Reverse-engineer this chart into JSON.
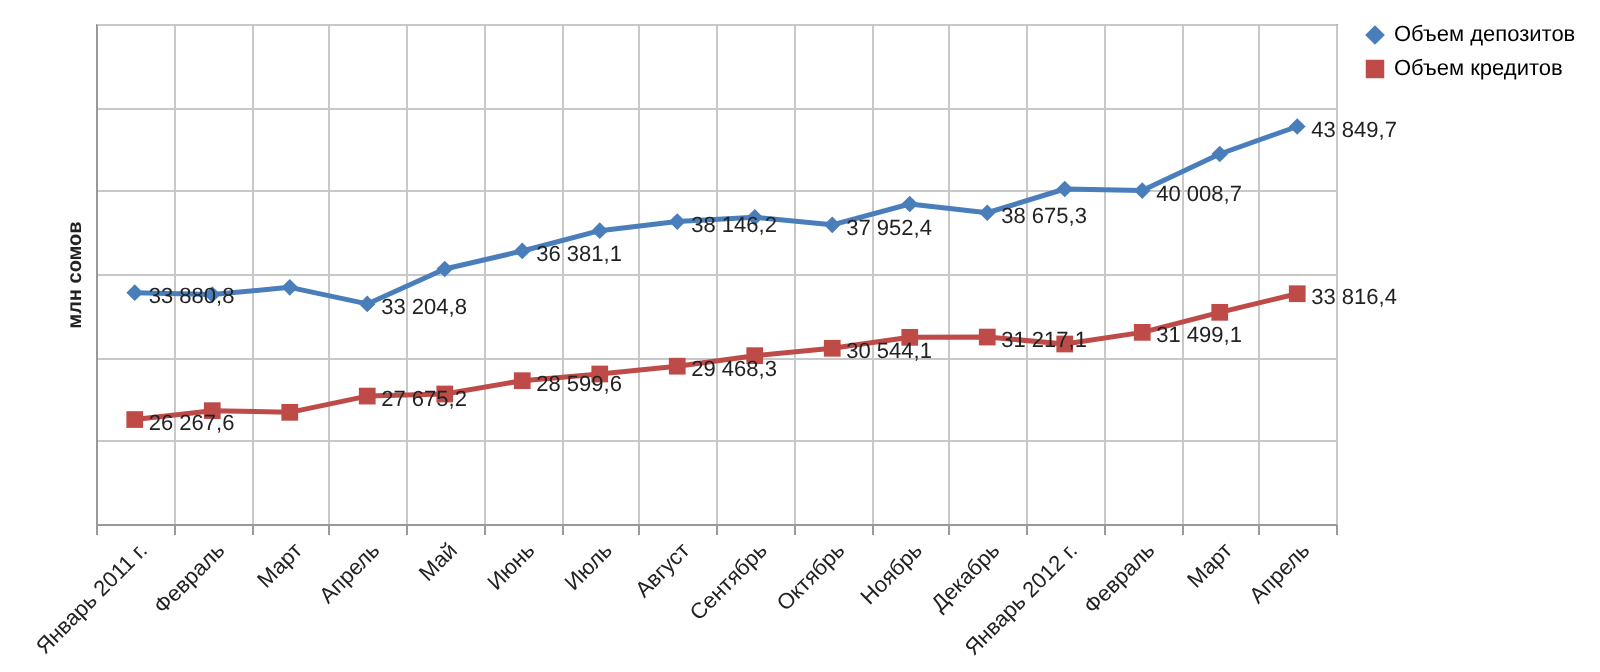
{
  "chart_data": {
    "type": "line",
    "ylabel": "млн сомов",
    "categories": [
      "Январь 2011 г.",
      "Февраль",
      "Март",
      "Апрель",
      "Май",
      "Июнь",
      "Июль",
      "Август",
      "Сентябрь",
      "Октябрь",
      "Ноябрь",
      "Декабрь",
      "Январь 2012 г.",
      "Февраль",
      "Март",
      "Апрель"
    ],
    "series": [
      {
        "name": "Объем депозитов",
        "color": "#4a7ebb",
        "marker": "diamond",
        "values": [
          33880.8,
          33770,
          34200,
          33204.8,
          35300,
          36381.1,
          37600,
          38146.2,
          38400,
          37952.4,
          39200,
          38675.3,
          40100,
          40008.7,
          42200,
          43849.7
        ],
        "value_labels": [
          "33 880,8",
          null,
          null,
          "33 204,8",
          null,
          "36 381,1",
          null,
          "38 146,2",
          null,
          "37 952,4",
          null,
          "38 675,3",
          null,
          "40 008,7",
          null,
          "43 849,7"
        ]
      },
      {
        "name": "Объем кредитов",
        "color": "#be4b48",
        "marker": "square",
        "values": [
          26267.6,
          26800,
          26700,
          27675.2,
          27800,
          28599.6,
          29000,
          29468.3,
          30100,
          30544.1,
          31200,
          31217.1,
          30800,
          31499.1,
          32700,
          33816.4
        ],
        "value_labels": [
          "26 267,6",
          null,
          null,
          "27 675,2",
          null,
          "28 599,6",
          null,
          "29 468,3",
          null,
          "30 544,1",
          null,
          "31 217,1",
          null,
          "31 499,1",
          null,
          "33 816,4"
        ]
      }
    ],
    "ylim": [
      20000,
      50000
    ],
    "yticks": [
      {
        "value": 20000,
        "label": null
      },
      {
        "value": 25000,
        "label": null
      },
      {
        "value": 30000,
        "label": null
      },
      {
        "value": 35000,
        "label": null
      },
      {
        "value": 40000,
        "label": null
      },
      {
        "value": 45000,
        "label": null
      },
      {
        "value": 50000,
        "label": null
      }
    ],
    "tick_labels": "x",
    "grid": true,
    "legend": "right",
    "line_style": "solid"
  }
}
